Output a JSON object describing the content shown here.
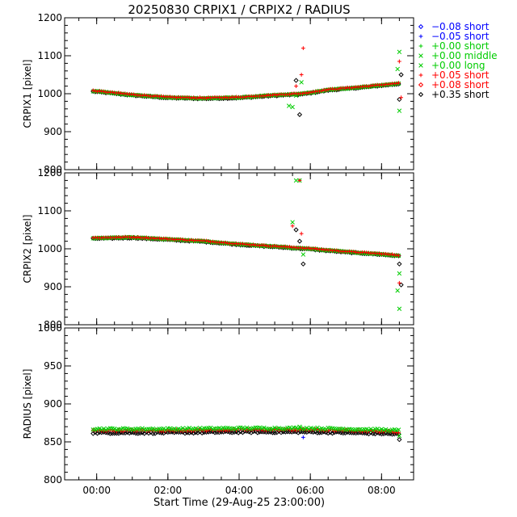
{
  "title": "20250830 CRPIX1 / CRPIX2 / RADIUS",
  "x_axis": {
    "label": "Start Time (29-Aug-25 23:00:00)",
    "range_hours": [
      -0.9,
      8.9
    ],
    "ticks": [
      {
        "h": 0,
        "label": "00:00"
      },
      {
        "h": 2,
        "label": "02:00"
      },
      {
        "h": 4,
        "label": "04:00"
      },
      {
        "h": 6,
        "label": "06:00"
      },
      {
        "h": 8,
        "label": "08:00"
      }
    ],
    "minor_step_hours": 0.5
  },
  "legend": [
    {
      "symbol": "diamond",
      "label": "−0.08 short",
      "color": "#0000ff",
      "symbol_color": "#0000ff"
    },
    {
      "symbol": "plus",
      "label": "−0.05 short",
      "color": "#0000ff",
      "symbol_color": "#0000ff"
    },
    {
      "symbol": "plus",
      "label": "+0.00 short",
      "color": "#00cc00",
      "symbol_color": "#00cc00"
    },
    {
      "symbol": "cross",
      "label": "+0.00 middle",
      "color": "#00cc00",
      "symbol_color": "#00cc00"
    },
    {
      "symbol": "cross",
      "label": "+0.00 long",
      "color": "#00cc00",
      "symbol_color": "#00cc00"
    },
    {
      "symbol": "plus",
      "label": "+0.05 short",
      "color": "#ff0000",
      "symbol_color": "#ff0000"
    },
    {
      "symbol": "diamond",
      "label": "+0.08 short",
      "color": "#ff0000",
      "symbol_color": "#ff0000"
    },
    {
      "symbol": "diamond",
      "label": "+0.35 short",
      "color": "#000000",
      "symbol_color": "#000000"
    }
  ],
  "chart_data": [
    {
      "type": "scatter",
      "name": "crpix1",
      "ylabel": "CRPIX1 [pixel]",
      "ylim": [
        800,
        1200
      ],
      "yticks": [
        800,
        900,
        1000,
        1100,
        1200
      ],
      "baseline": [
        [
          -0.1,
          1007
        ],
        [
          1.0,
          997
        ],
        [
          2.0,
          990
        ],
        [
          3.0,
          988
        ],
        [
          4.0,
          990
        ],
        [
          5.0,
          996
        ],
        [
          5.8,
          1000
        ],
        [
          6.5,
          1010
        ],
        [
          7.5,
          1018
        ],
        [
          8.5,
          1027
        ]
      ],
      "series": [
        {
          "name": "+0.35 short",
          "color": "#000000",
          "offset": -1,
          "spikes": [
            [
              5.6,
              1035
            ],
            [
              5.7,
              945
            ],
            [
              8.5,
              985
            ],
            [
              8.55,
              1050
            ]
          ]
        },
        {
          "name": "+0.00 short",
          "color": "#00cc00",
          "offset": 0,
          "spikes": [
            [
              5.4,
              968
            ],
            [
              5.5,
              965
            ],
            [
              5.6,
              995
            ],
            [
              5.75,
              1030
            ],
            [
              8.45,
              1065
            ],
            [
              8.5,
              1110
            ],
            [
              8.5,
              955
            ]
          ]
        },
        {
          "name": "+0.05 short",
          "color": "#ff0000",
          "offset": 1,
          "spikes": [
            [
              5.6,
              1020
            ],
            [
              5.75,
              1050
            ],
            [
              5.8,
              1120
            ],
            [
              8.5,
              1085
            ],
            [
              8.55,
              990
            ]
          ]
        }
      ]
    },
    {
      "type": "scatter",
      "name": "crpix2",
      "ylabel": "CRPIX2 [pixel]",
      "ylim": [
        800,
        1200
      ],
      "yticks": [
        800,
        900,
        1000,
        1100,
        1200
      ],
      "baseline": [
        [
          -0.1,
          1028
        ],
        [
          1.0,
          1030
        ],
        [
          2.0,
          1025
        ],
        [
          3.0,
          1020
        ],
        [
          4.0,
          1012
        ],
        [
          5.0,
          1006
        ],
        [
          6.0,
          1000
        ],
        [
          7.0,
          992
        ],
        [
          8.0,
          986
        ],
        [
          8.5,
          982
        ]
      ],
      "series": [
        {
          "name": "+0.35 short",
          "color": "#000000",
          "offset": -1,
          "spikes": [
            [
              5.6,
              1050
            ],
            [
              5.7,
              1020
            ],
            [
              5.8,
              960
            ],
            [
              8.5,
              960
            ],
            [
              8.55,
              905
            ]
          ]
        },
        {
          "name": "+0.00 short",
          "color": "#00cc00",
          "offset": 0,
          "spikes": [
            [
              5.5,
              1070
            ],
            [
              5.6,
              1180
            ],
            [
              5.7,
              1180
            ],
            [
              5.8,
              985
            ],
            [
              8.45,
              890
            ],
            [
              8.5,
              842
            ],
            [
              8.5,
              935
            ]
          ]
        },
        {
          "name": "+0.05 short",
          "color": "#ff0000",
          "offset": 1,
          "spikes": [
            [
              5.5,
              1060
            ],
            [
              5.7,
              1180
            ],
            [
              5.75,
              1040
            ],
            [
              8.5,
              910
            ]
          ]
        }
      ]
    },
    {
      "type": "scatter",
      "name": "radius",
      "ylabel": "RADIUS [pixel]",
      "ylim": [
        800,
        1000
      ],
      "yticks": [
        800,
        850,
        900,
        950,
        1000
      ],
      "baseline": [
        [
          -0.1,
          862
        ],
        [
          2.0,
          862
        ],
        [
          4.0,
          863
        ],
        [
          6.0,
          863
        ],
        [
          8.0,
          861
        ],
        [
          8.5,
          860
        ]
      ],
      "series": [
        {
          "name": "+0.35 short",
          "color": "#000000",
          "offset": 0,
          "spikes": [
            [
              8.5,
              853
            ]
          ]
        },
        {
          "name": "+0.05 short",
          "color": "#ff0000",
          "offset": 3,
          "spikes": []
        },
        {
          "name": "+0.00 short",
          "color": "#00cc00",
          "offset": 5,
          "spikes": [
            [
              5.7,
              870
            ],
            [
              8.5,
              858
            ]
          ]
        },
        {
          "name": "-0.05 short",
          "color": "#0000ff",
          "offset": 0,
          "spikes": [
            [
              5.8,
              856
            ]
          ]
        }
      ]
    }
  ]
}
